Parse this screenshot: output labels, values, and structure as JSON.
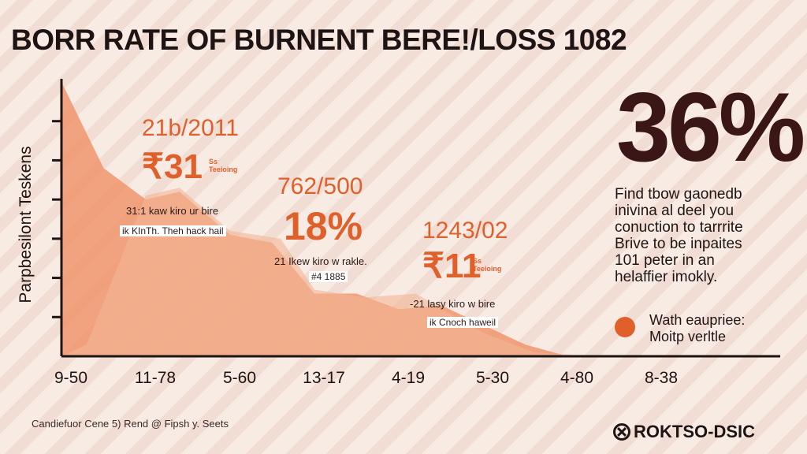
{
  "page": {
    "title": "BORR RATE  OF BURNENT BERE!/LOSS 1082",
    "source": "Candiefuor  Cene 5)  Rend @ Fipsh y. Seets",
    "brand": "ROKTSO-DSIC",
    "brand_icon": "circle-x-icon",
    "big_percent": "36%",
    "description": [
      "Find tbow gaonedb",
      "inivina al deel you",
      "conuction to tarrrite",
      "Brive to be inpaites",
      "101 peter in an",
      "helaffier imokly."
    ],
    "legend": {
      "color": "#e0602c",
      "lines": [
        "Wath eaupriee:",
        "Moitp verltle"
      ]
    }
  },
  "callouts": [
    {
      "headline": "21b/2011",
      "value": "₹31",
      "small": [
        "Ss",
        "Teeioing"
      ],
      "notes": [
        "31:1 kaw kiro ur bire",
        "ik KInTh. Theh hack hail"
      ]
    },
    {
      "headline": "762/500",
      "value": "18%",
      "small": [],
      "notes": [
        "21 Ikew kiro w rakle.",
        "#4 1885"
      ]
    },
    {
      "headline": "1243/02",
      "value": "₹11",
      "small": [
        "Ss",
        "Teeioing"
      ],
      "notes": [
        "-21 lasy kiro w bire",
        "ik Cnoch haweil"
      ]
    }
  ],
  "chart_data": {
    "type": "area",
    "title": "BORR RATE  OF BURNENT BERE!/LOSS 1082",
    "ylabel": "Parpbesilont  Teskens",
    "xlabel": "",
    "categories": [
      "9-50",
      "11-78",
      "5-60",
      "13-17",
      "4-19",
      "5-30",
      "4-80",
      "8-38"
    ],
    "ylim": [
      0,
      7
    ],
    "yticks": [
      1,
      2,
      3,
      4,
      5,
      6
    ],
    "grid": false,
    "series": [
      {
        "color": "#ef9a72",
        "x": [
          0,
          0.5,
          1,
          1.4,
          2,
          2.5,
          3,
          3.5,
          4,
          4.5,
          5,
          5.5,
          6,
          6.3
        ],
        "values": [
          7,
          4.8,
          4.0,
          4.2,
          3.1,
          2.9,
          1.6,
          1.6,
          1.2,
          1.3,
          0.8,
          0.3,
          0,
          0
        ]
      },
      {
        "color": "#f3b596",
        "x": [
          0,
          0.3,
          1,
          1.4,
          2,
          2.6,
          3,
          3.6,
          4.2,
          5,
          5.6,
          6.3
        ],
        "values": [
          0,
          0.3,
          4.1,
          4.3,
          3.2,
          3.0,
          1.7,
          1.5,
          1.6,
          0.6,
          0.1,
          0
        ]
      }
    ]
  }
}
